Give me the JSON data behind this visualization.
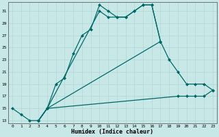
{
  "xlabel": "Humidex (Indice chaleur)",
  "bg_color": "#c8e8e8",
  "grid_color": "#b0d4d4",
  "line_color": "#006868",
  "xlim": [
    -0.5,
    23.5
  ],
  "ylim": [
    12.5,
    32.5
  ],
  "xticks": [
    0,
    1,
    2,
    3,
    4,
    5,
    6,
    7,
    8,
    9,
    10,
    11,
    12,
    13,
    14,
    15,
    16,
    17,
    18,
    19,
    20,
    21,
    22,
    23
  ],
  "yticks": [
    13,
    15,
    17,
    19,
    21,
    23,
    25,
    27,
    29,
    31
  ],
  "line1_x": [
    0,
    1,
    2,
    3,
    4,
    5,
    6,
    7,
    8,
    9,
    10,
    11,
    12,
    13,
    14,
    15,
    16,
    17
  ],
  "line1_y": [
    15,
    14,
    13,
    13,
    15,
    19,
    20,
    24,
    27,
    28,
    32,
    31,
    30,
    30,
    31,
    32,
    32,
    26
  ],
  "line2_x": [
    3,
    4,
    10,
    11,
    12,
    13,
    14,
    15,
    16,
    17
  ],
  "line2_y": [
    13,
    15,
    31,
    30,
    30,
    30,
    31,
    32,
    32,
    26
  ],
  "line3_x": [
    3,
    4,
    17,
    18,
    19,
    20,
    21,
    22,
    23
  ],
  "line3_y": [
    13,
    15,
    26,
    23,
    21,
    19,
    19,
    19,
    18
  ],
  "line4_x": [
    3,
    4,
    19,
    20,
    21,
    22,
    23
  ],
  "line4_y": [
    13,
    15,
    17,
    17,
    17,
    17,
    18
  ]
}
